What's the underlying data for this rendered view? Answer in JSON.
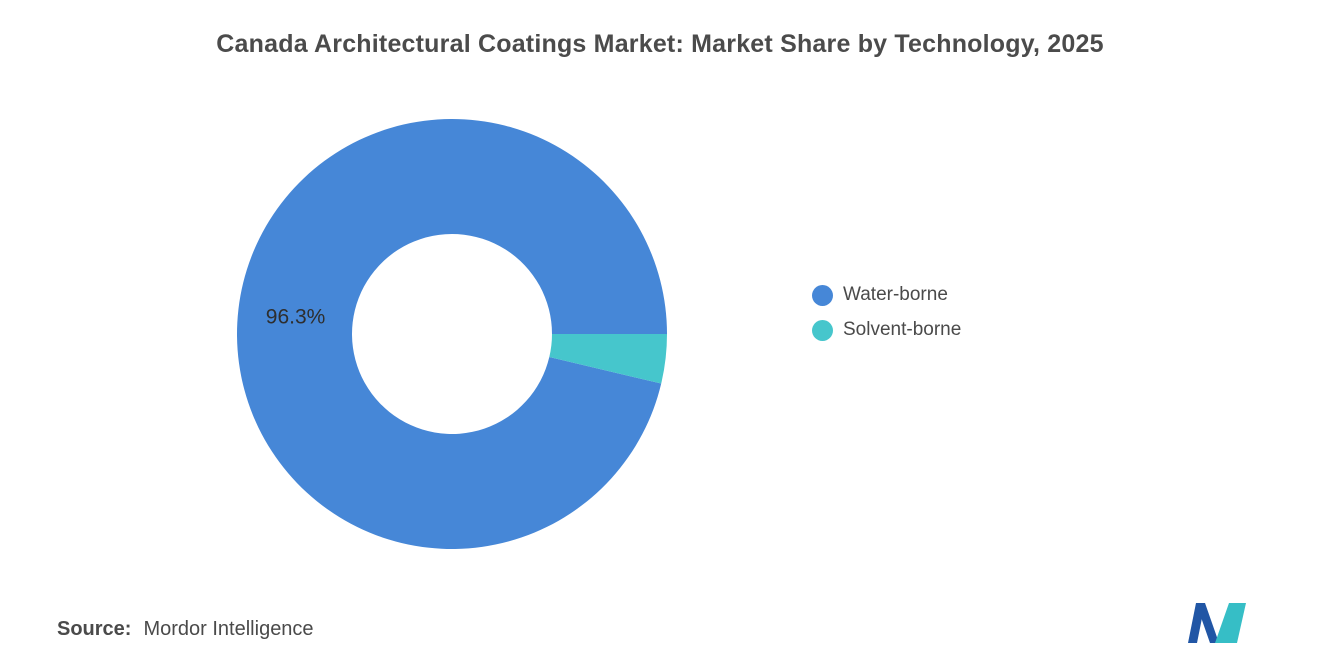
{
  "title": "Canada Architectural Coatings Market: Market Share by Technology, 2025",
  "source": {
    "label": "Source:",
    "value": "Mordor Intelligence"
  },
  "legend": [
    {
      "label": "Water-borne",
      "color": "#4687D7"
    },
    {
      "label": "Solvent-borne",
      "color": "#46C6CC"
    }
  ],
  "logo": {
    "name": "mordor-intelligence-logo",
    "blue": "#2156A5",
    "teal": "#36BEC6"
  },
  "chart_data": {
    "type": "pie",
    "donut": true,
    "title": "Canada Architectural Coatings Market: Market Share by Technology, 2025",
    "labels": [
      "Water-borne",
      "Solvent-borne"
    ],
    "values": [
      96.3,
      3.7
    ],
    "colors": [
      "#4687D7",
      "#46C6CC"
    ],
    "data_labels": [
      "96.3%",
      ""
    ],
    "data_label_color": "#2e2e2e",
    "start_angle_deg": 90,
    "direction": "counterclockwise-order-clockwise-sweep",
    "inner_radius_ratio": 0.465,
    "legend_position": "right",
    "grid": false
  }
}
